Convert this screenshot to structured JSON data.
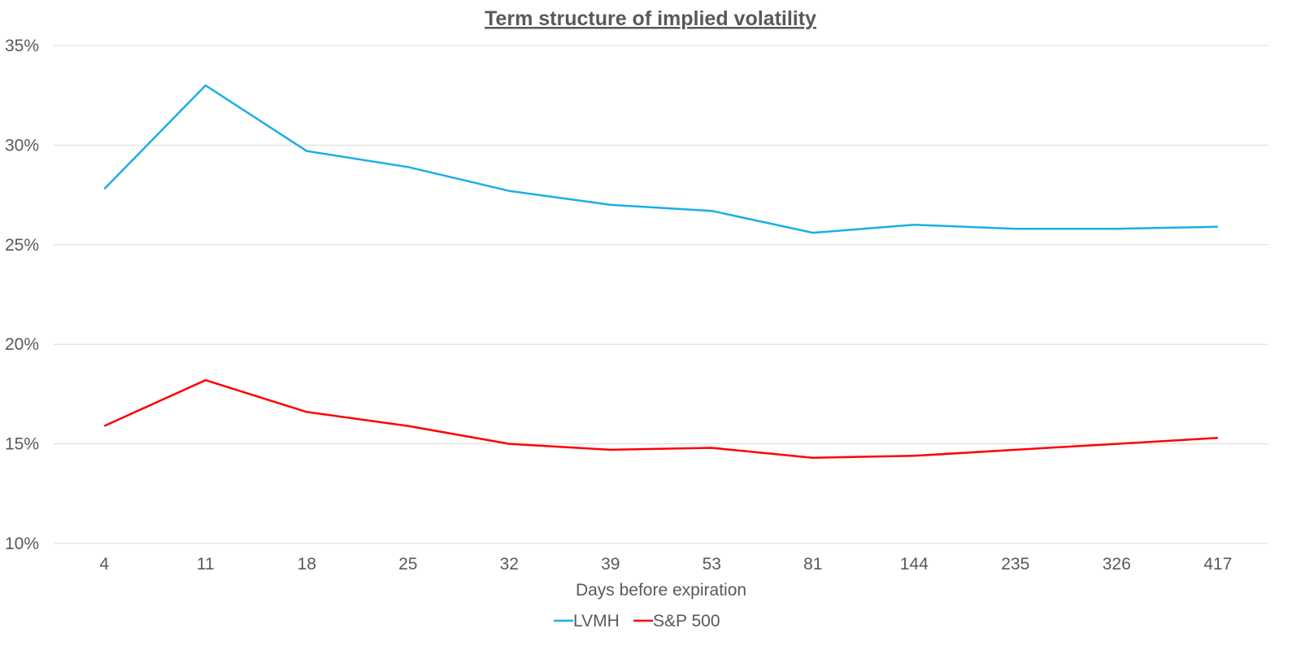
{
  "chart_data": {
    "type": "line",
    "title": "Term structure of implied volatility",
    "xlabel": "Days before expiration",
    "ylabel": "",
    "categories": [
      "4",
      "11",
      "18",
      "25",
      "32",
      "39",
      "53",
      "81",
      "144",
      "235",
      "326",
      "417"
    ],
    "ylim": [
      0.1,
      0.35
    ],
    "yticks": [
      0.1,
      0.15,
      0.2,
      0.25,
      0.3,
      0.35
    ],
    "ytick_labels": [
      "10%",
      "15%",
      "20%",
      "25%",
      "30%",
      "35%"
    ],
    "grid": true,
    "legend_position": "bottom",
    "series": [
      {
        "name": "LVMH",
        "color": "#1aafe6",
        "values": [
          0.278,
          0.33,
          0.297,
          0.289,
          0.277,
          0.27,
          0.267,
          0.256,
          0.26,
          0.258,
          0.258,
          0.259
        ]
      },
      {
        "name": "S&P 500",
        "color": "#ff0000",
        "values": [
          0.159,
          0.182,
          0.166,
          0.159,
          0.15,
          0.147,
          0.148,
          0.143,
          0.144,
          0.147,
          0.15,
          0.153
        ]
      }
    ]
  }
}
